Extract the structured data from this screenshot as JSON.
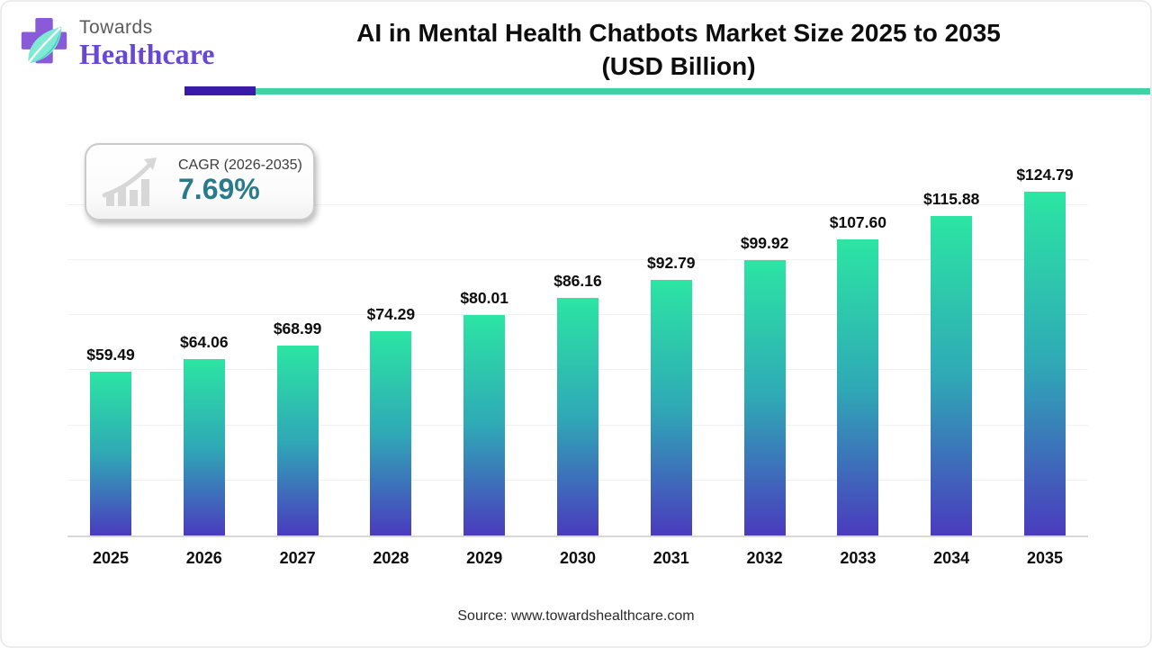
{
  "logo": {
    "top": "Towards",
    "bottom": "Healthcare"
  },
  "header": {
    "title_line1": "AI in Mental Health Chatbots Market Size 2025 to 2035",
    "title_line2": "(USD Billion)"
  },
  "cagr": {
    "label": "CAGR (2026-2035)",
    "value": "7.69%"
  },
  "chart_data": {
    "type": "bar",
    "title": "AI in Mental Health Chatbots Market Size 2025 to 2035 (USD Billion)",
    "categories": [
      "2025",
      "2026",
      "2027",
      "2028",
      "2029",
      "2030",
      "2031",
      "2032",
      "2033",
      "2034",
      "2035"
    ],
    "values": [
      59.49,
      64.06,
      68.99,
      74.29,
      80.01,
      86.16,
      92.79,
      99.92,
      107.6,
      115.88,
      124.79
    ],
    "value_labels": [
      "$59.49",
      "$64.06",
      "$68.99",
      "$74.29",
      "$80.01",
      "$86.16",
      "$92.79",
      "$99.92",
      "$107.60",
      "$115.88",
      "$124.79"
    ],
    "xlabel": "",
    "ylabel": "",
    "ylim": [
      0,
      130
    ],
    "grid": "horizontal gridlines every 20, unlabeled",
    "legend": "none",
    "bar_gradient_top": "#2ce5a3",
    "bar_gradient_bottom": "#4a3bbe"
  },
  "footer": {
    "source": "Source: www.towardshealthcare.com"
  },
  "colors": {
    "accent_teal": "#3fd3a3",
    "accent_purple": "#3a1ba8",
    "logo_purple": "#6747d3",
    "cagr_teal": "#2b7a8c",
    "title_text": "#0d0d0d",
    "gridline": "#f1f1f1",
    "axis_line": "#d8d8d8"
  }
}
